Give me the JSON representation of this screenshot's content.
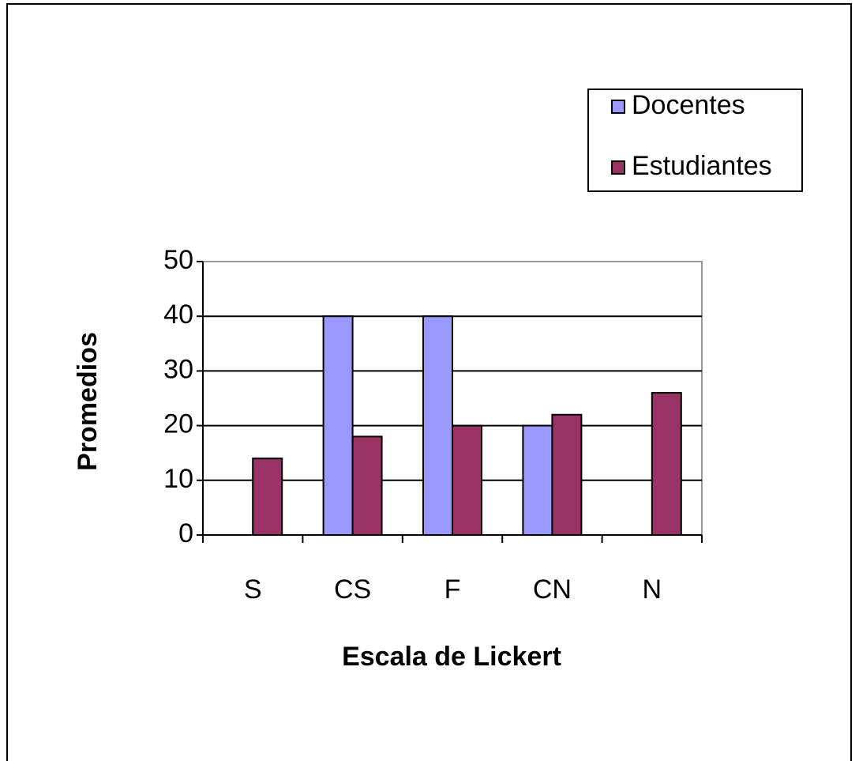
{
  "chart_data": {
    "type": "bar",
    "x_label": "Escala de Lickert",
    "y_label": "Promedios",
    "categories": [
      "S",
      "CS",
      "F",
      "CN",
      "N"
    ],
    "series": [
      {
        "name": "Docentes",
        "color": "#9999ff",
        "values": [
          0,
          40,
          40,
          20,
          0
        ]
      },
      {
        "name": "Estudiantes",
        "color": "#993366",
        "values": [
          14,
          18,
          20,
          22,
          26
        ]
      }
    ],
    "ylim": [
      0,
      50
    ],
    "yticks": [
      0,
      10,
      20,
      30,
      40,
      50
    ],
    "grid": true,
    "legend": "top-right"
  }
}
